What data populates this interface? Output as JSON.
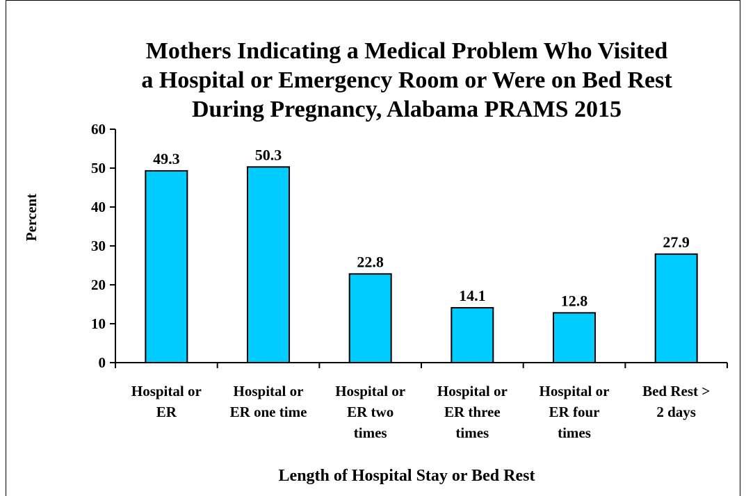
{
  "chart_data": {
    "type": "bar",
    "title": "Mothers Indicating a Medical Problem Who Visited\na Hospital or Emergency Room or Were on Bed Rest\nDuring Pregnancy, Alabama PRAMS 2015",
    "xlabel": "Length of Hospital Stay or Bed Rest",
    "ylabel": "Percent",
    "categories": [
      "Hospital or\nER",
      "Hospital or\nER one time",
      "Hospital or\nER two\ntimes",
      "Hospital or\nER three\ntimes",
      "Hospital or\nER four\ntimes",
      "Bed Rest >\n2 days"
    ],
    "values": [
      49.3,
      50.3,
      22.8,
      14.1,
      12.8,
      27.9
    ],
    "color": "#00ccff",
    "ylim": [
      0,
      60
    ],
    "yticks": [
      0,
      10,
      20,
      30,
      40,
      50,
      60
    ],
    "grid": false
  }
}
